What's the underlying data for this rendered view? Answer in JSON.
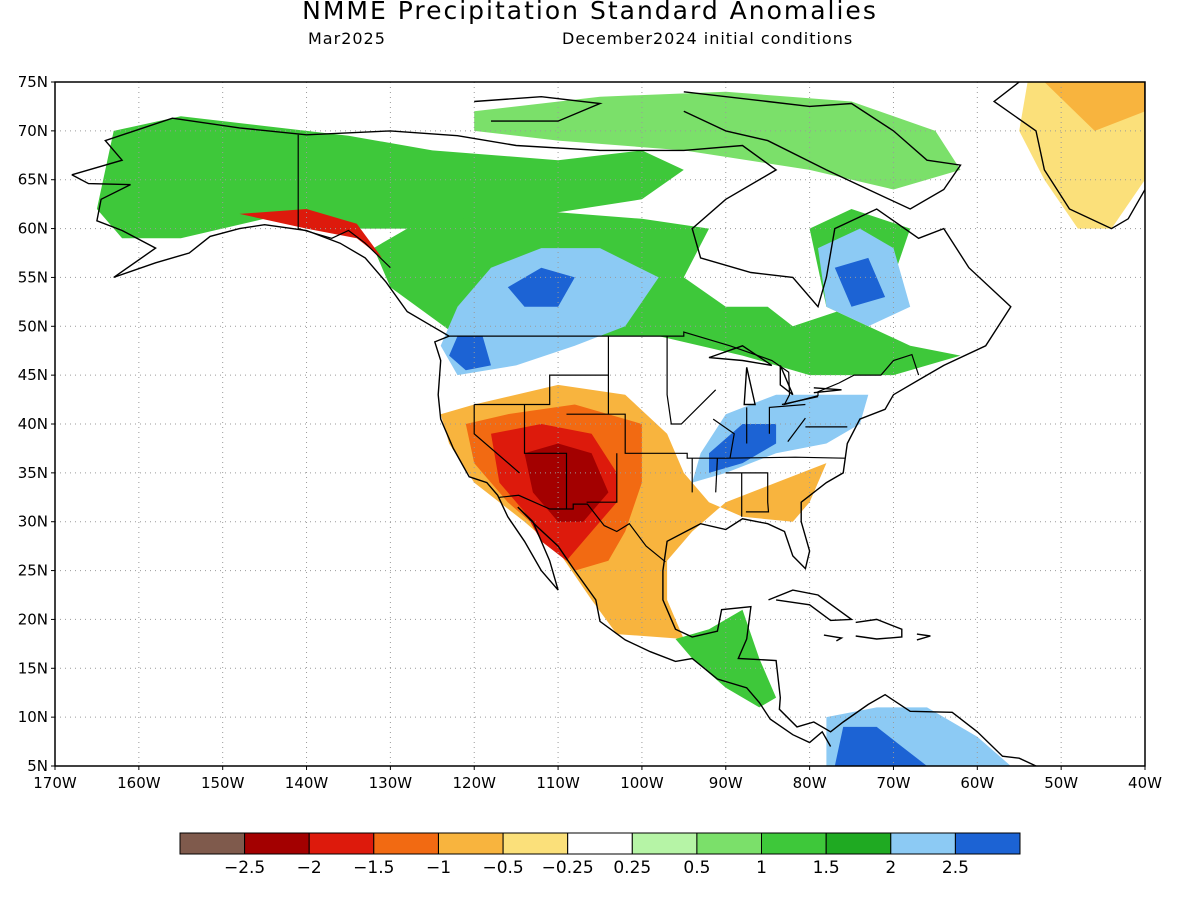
{
  "title": "NMME Precipitation Standard Anomalies",
  "subtitle_left": "Mar2025",
  "subtitle_right": "December2024 initial conditions",
  "map": {
    "lon_range": [
      -170,
      -40
    ],
    "lat_range": [
      5,
      75
    ],
    "lat_labels": [
      "5N",
      "10N",
      "15N",
      "20N",
      "25N",
      "30N",
      "35N",
      "40N",
      "45N",
      "50N",
      "55N",
      "60N",
      "65N",
      "70N",
      "75N"
    ],
    "lon_labels": [
      "170W",
      "160W",
      "150W",
      "140W",
      "130W",
      "120W",
      "110W",
      "100W",
      "90W",
      "80W",
      "70W",
      "60W",
      "50W",
      "40W"
    ],
    "grid": true
  },
  "colorbar": {
    "colors": [
      "#7f5a4c",
      "#a30000",
      "#dd1a0c",
      "#f26a12",
      "#f8b43e",
      "#fbe07a",
      "#ffffff",
      "#b6f4a6",
      "#7be06a",
      "#3ec83a",
      "#1faa22",
      "#8ccaf4",
      "#1c63d4"
    ],
    "labels": [
      "−2.5",
      "−2",
      "−1.5",
      "−1",
      "−0.5",
      "−0.25",
      "0.25",
      "0.5",
      "1",
      "1.5",
      "2",
      "2.5"
    ]
  },
  "regions": [
    {
      "name": "alaska-yukon-wet",
      "color": "#3ec83a",
      "coords": [
        [
          -165,
          62
        ],
        [
          -163,
          70
        ],
        [
          -155,
          71.5
        ],
        [
          -145,
          70.5
        ],
        [
          -135,
          69.5
        ],
        [
          -125,
          68
        ],
        [
          -110,
          67
        ],
        [
          -100,
          68
        ],
        [
          -95,
          66
        ],
        [
          -100,
          63
        ],
        [
          -115,
          61
        ],
        [
          -125,
          60
        ],
        [
          -135,
          60
        ],
        [
          -145,
          61
        ],
        [
          -155,
          59
        ],
        [
          -162,
          59
        ]
      ]
    },
    {
      "name": "canada-interior-wet",
      "color": "#3ec83a",
      "coords": [
        [
          -128,
          60
        ],
        [
          -115,
          62
        ],
        [
          -100,
          61
        ],
        [
          -92,
          60
        ],
        [
          -95,
          55
        ],
        [
          -90,
          52
        ],
        [
          -85,
          52
        ],
        [
          -82,
          50
        ],
        [
          -75,
          52
        ],
        [
          -70,
          55
        ],
        [
          -68,
          60
        ],
        [
          -75,
          62
        ],
        [
          -80,
          60
        ],
        [
          -78,
          52
        ],
        [
          -68,
          48
        ],
        [
          -62,
          47
        ],
        [
          -70,
          45
        ],
        [
          -80,
          45
        ],
        [
          -88,
          47
        ],
        [
          -98,
          49
        ],
        [
          -110,
          49
        ],
        [
          -122,
          49
        ],
        [
          -130,
          54
        ],
        [
          -132,
          58
        ]
      ]
    },
    {
      "name": "arctic-islands-wet",
      "color": "#7be06a",
      "coords": [
        [
          -120,
          72
        ],
        [
          -105,
          73.5
        ],
        [
          -90,
          74
        ],
        [
          -75,
          73
        ],
        [
          -65,
          70
        ],
        [
          -62,
          66
        ],
        [
          -70,
          64
        ],
        [
          -80,
          66
        ],
        [
          -95,
          68
        ],
        [
          -110,
          69
        ],
        [
          -120,
          70
        ]
      ]
    },
    {
      "name": "prairies-blue",
      "color": "#8ccaf4",
      "coords": [
        [
          -122,
          52
        ],
        [
          -118,
          56
        ],
        [
          -112,
          58
        ],
        [
          -105,
          58
        ],
        [
          -98,
          55
        ],
        [
          -102,
          50
        ],
        [
          -108,
          48
        ],
        [
          -115,
          46
        ],
        [
          -122,
          45
        ],
        [
          -124,
          48
        ]
      ]
    },
    {
      "name": "bc-deep-blue",
      "color": "#1c63d4",
      "coords": [
        [
          -116,
          54
        ],
        [
          -112,
          56
        ],
        [
          -108,
          55
        ],
        [
          -110,
          52
        ],
        [
          -114,
          52
        ]
      ]
    },
    {
      "name": "nw-us-deep-blue",
      "color": "#1c63d4",
      "coords": [
        [
          -122,
          49
        ],
        [
          -119,
          49
        ],
        [
          -118,
          46
        ],
        [
          -121,
          45.5
        ],
        [
          -123,
          47
        ]
      ]
    },
    {
      "name": "quebec-blue",
      "color": "#8ccaf4",
      "coords": [
        [
          -79,
          58
        ],
        [
          -74,
          60
        ],
        [
          -70,
          58
        ],
        [
          -68,
          52
        ],
        [
          -73,
          50
        ],
        [
          -78,
          52
        ]
      ]
    },
    {
      "name": "quebec-deep-blue",
      "color": "#1c63d4",
      "coords": [
        [
          -77,
          56
        ],
        [
          -73,
          57
        ],
        [
          -71,
          53
        ],
        [
          -75,
          52
        ]
      ]
    },
    {
      "name": "ohio-valley-blue",
      "color": "#8ccaf4",
      "coords": [
        [
          -93,
          37
        ],
        [
          -90,
          41
        ],
        [
          -84,
          43
        ],
        [
          -78,
          43
        ],
        [
          -73,
          43
        ],
        [
          -74,
          40
        ],
        [
          -78,
          38
        ],
        [
          -84,
          37
        ],
        [
          -90,
          35
        ],
        [
          -94,
          34
        ]
      ]
    },
    {
      "name": "ohio-valley-deep-blue",
      "color": "#1c63d4",
      "coords": [
        [
          -92,
          37
        ],
        [
          -88,
          40
        ],
        [
          -84,
          40
        ],
        [
          -84,
          38
        ],
        [
          -88,
          36
        ],
        [
          -92,
          35
        ]
      ]
    },
    {
      "name": "southwest-orange",
      "color": "#f8b43e",
      "coords": [
        [
          -124,
          41
        ],
        [
          -120,
          42
        ],
        [
          -110,
          44
        ],
        [
          -102,
          43
        ],
        [
          -97,
          39
        ],
        [
          -95,
          35
        ],
        [
          -92,
          32
        ],
        [
          -88,
          30.5
        ],
        [
          -82,
          30
        ],
        [
          -80,
          32
        ],
        [
          -78,
          36
        ],
        [
          -84,
          34
        ],
        [
          -90,
          32
        ],
        [
          -94,
          29
        ],
        [
          -97,
          26
        ],
        [
          -97,
          22
        ],
        [
          -95,
          18
        ],
        [
          -103,
          18.5
        ],
        [
          -106,
          22
        ],
        [
          -110,
          27
        ],
        [
          -114,
          30
        ],
        [
          -117,
          32
        ],
        [
          -120,
          34
        ],
        [
          -123,
          38
        ]
      ]
    },
    {
      "name": "southwest-red-orange",
      "color": "#f26a12",
      "coords": [
        [
          -121,
          40
        ],
        [
          -116,
          41
        ],
        [
          -108,
          42
        ],
        [
          -100,
          40
        ],
        [
          -100,
          34
        ],
        [
          -102,
          29
        ],
        [
          -104,
          26
        ],
        [
          -108,
          25
        ],
        [
          -112,
          29
        ],
        [
          -116,
          32
        ],
        [
          -120,
          36
        ]
      ]
    },
    {
      "name": "southwest-red",
      "color": "#dd1a0c",
      "coords": [
        [
          -118,
          39
        ],
        [
          -112,
          40
        ],
        [
          -106,
          39
        ],
        [
          -103,
          35
        ],
        [
          -103,
          32
        ],
        [
          -106,
          29
        ],
        [
          -109,
          26
        ],
        [
          -112,
          28
        ],
        [
          -114,
          31
        ],
        [
          -117,
          34
        ]
      ]
    },
    {
      "name": "southwest-dark-red",
      "color": "#a30000",
      "coords": [
        [
          -114,
          37
        ],
        [
          -110,
          38
        ],
        [
          -106,
          37
        ],
        [
          -104,
          33
        ],
        [
          -107,
          30
        ],
        [
          -110,
          30
        ],
        [
          -113,
          33
        ]
      ]
    },
    {
      "name": "greenland-yellow",
      "color": "#fbe07a",
      "coords": [
        [
          -54,
          75
        ],
        [
          -40,
          75
        ],
        [
          -40,
          65
        ],
        [
          -44,
          60
        ],
        [
          -48,
          60
        ],
        [
          -52,
          65
        ],
        [
          -55,
          70
        ]
      ]
    },
    {
      "name": "greenland-orange",
      "color": "#f8b43e",
      "coords": [
        [
          -52,
          75
        ],
        [
          -40,
          75
        ],
        [
          -40,
          72
        ],
        [
          -46,
          70
        ]
      ]
    },
    {
      "name": "south-alaska-red",
      "color": "#dd1a0c",
      "coords": [
        [
          -148,
          61.5
        ],
        [
          -140,
          62
        ],
        [
          -134,
          60.5
        ],
        [
          -131,
          57
        ],
        [
          -134,
          59
        ],
        [
          -140,
          60
        ]
      ]
    },
    {
      "name": "central-america-wet",
      "color": "#3ec83a",
      "coords": [
        [
          -96,
          18
        ],
        [
          -92,
          19
        ],
        [
          -88,
          21
        ],
        [
          -86,
          16
        ],
        [
          -84,
          12
        ],
        [
          -86,
          11
        ],
        [
          -90,
          13
        ],
        [
          -94,
          16
        ]
      ]
    },
    {
      "name": "south-america-blue",
      "color": "#8ccaf4",
      "coords": [
        [
          -78,
          5
        ],
        [
          -78,
          10
        ],
        [
          -72,
          11
        ],
        [
          -66,
          11
        ],
        [
          -60,
          8
        ],
        [
          -56,
          5
        ]
      ]
    },
    {
      "name": "colombia-deep-blue",
      "color": "#1c63d4",
      "coords": [
        [
          -77,
          5
        ],
        [
          -76,
          9
        ],
        [
          -72,
          9
        ],
        [
          -69,
          7
        ],
        [
          -66,
          5
        ]
      ]
    }
  ]
}
